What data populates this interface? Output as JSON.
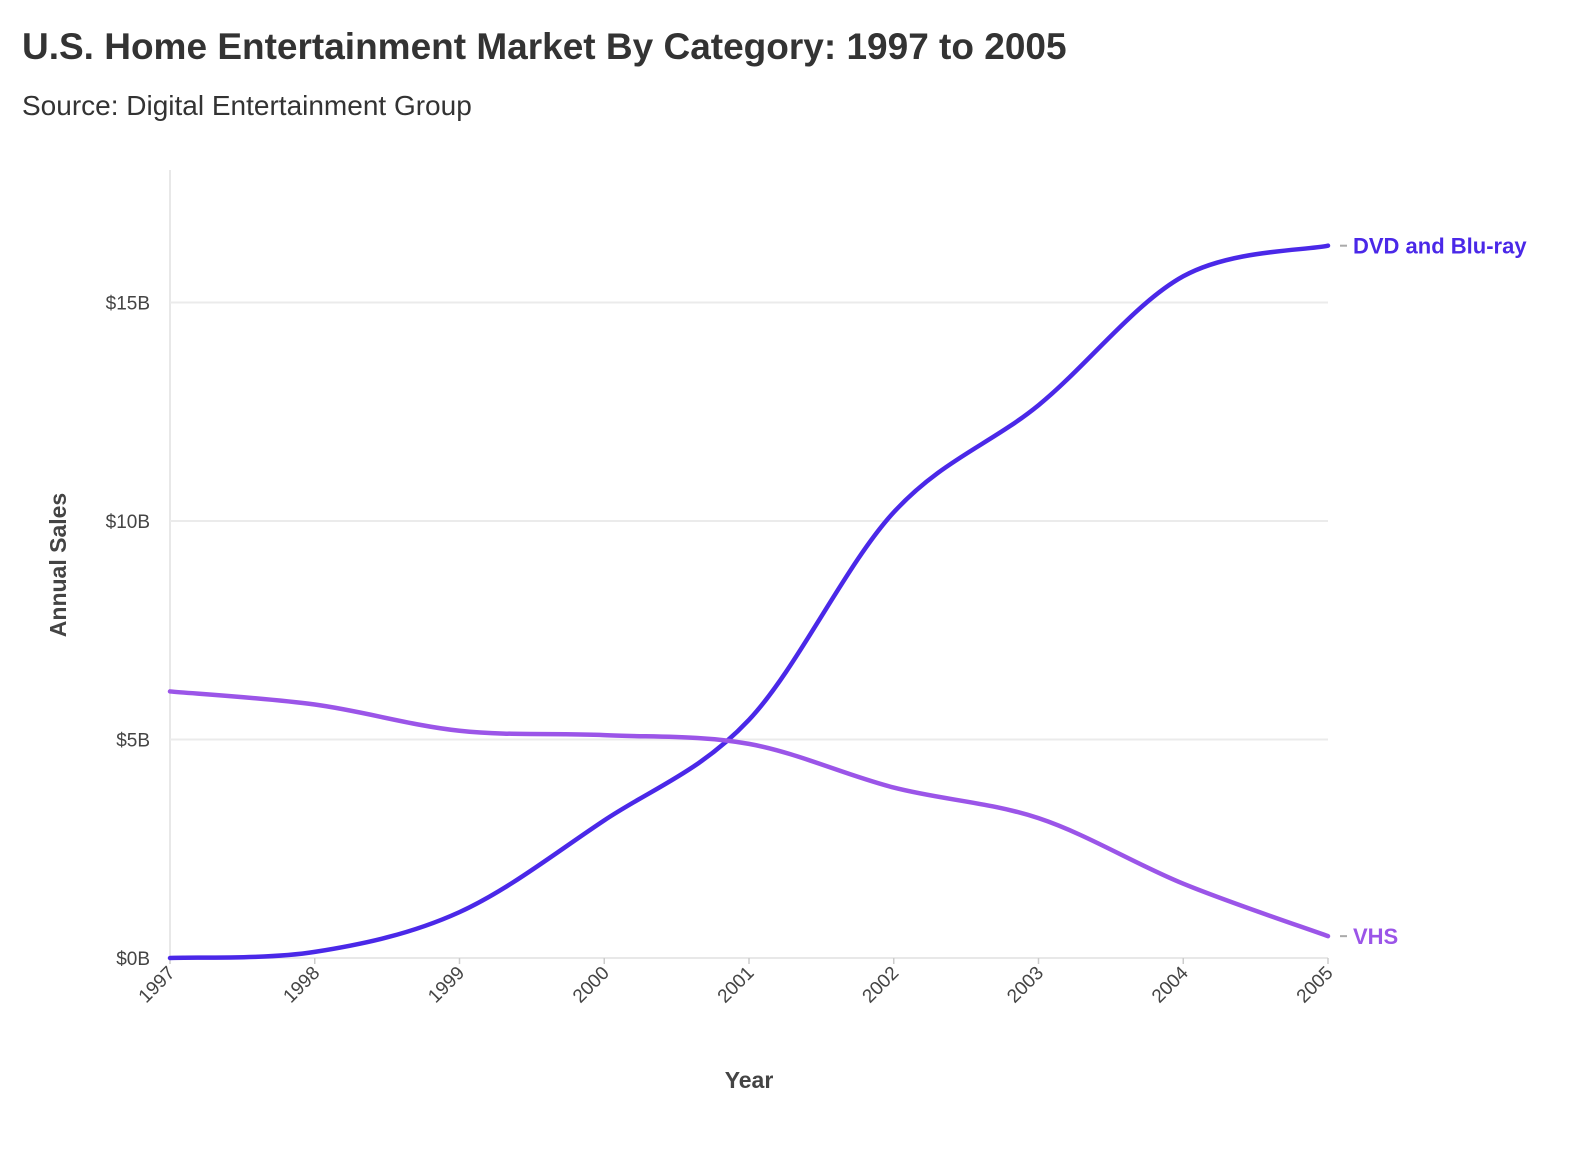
{
  "title": "U.S. Home Entertainment Market By Category: 1997 to 2005",
  "subtitle": "Source: Digital Entertainment Group",
  "chart_data": {
    "type": "line",
    "title": "U.S. Home Entertainment Market By Category: 1997 to 2005",
    "subtitle": "Source: Digital Entertainment Group",
    "xlabel": "Year",
    "ylabel": "Annual Sales",
    "x": [
      "1997",
      "1998",
      "1999",
      "2000",
      "2001",
      "2002",
      "2003",
      "2004",
      "2005"
    ],
    "xlim": [
      1997,
      2005
    ],
    "ylim": [
      0,
      18
    ],
    "y_ticks": [
      0,
      5,
      10,
      15
    ],
    "y_tick_labels": [
      "$0B",
      "$5B",
      "$10B",
      "$15B"
    ],
    "grid": "horizontal",
    "legend": "direct labels at line ends (right)",
    "series": [
      {
        "name": "DVD and Blu-ray",
        "color": "#4a28e8",
        "values": [
          0.0,
          0.14,
          1.05,
          3.15,
          5.45,
          10.2,
          12.65,
          15.6,
          16.3
        ]
      },
      {
        "name": "VHS",
        "color": "#9b55e8",
        "values": [
          6.1,
          5.8,
          5.2,
          5.1,
          4.9,
          3.9,
          3.2,
          1.7,
          0.5
        ]
      }
    ]
  }
}
